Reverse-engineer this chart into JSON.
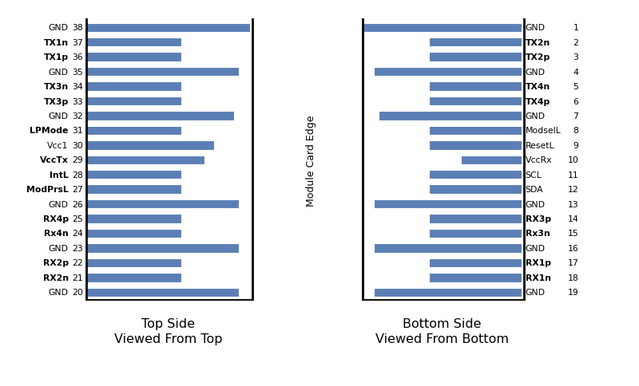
{
  "bar_color": "#5b7fb5",
  "top_labels": [
    "GND",
    "TX1n",
    "TX1p",
    "GND",
    "TX3n",
    "TX3p",
    "GND",
    "LPMode",
    "Vcc1",
    "VccTx",
    "IntL",
    "ModPrsL",
    "GND",
    "RX4p",
    "Rx4n",
    "GND",
    "RX2p",
    "RX2n",
    "GND"
  ],
  "top_numbers": [
    38,
    37,
    36,
    35,
    34,
    33,
    32,
    31,
    30,
    29,
    28,
    27,
    26,
    25,
    24,
    23,
    22,
    21,
    20
  ],
  "top_bar_lengths": [
    10,
    5.8,
    5.8,
    9.3,
    5.8,
    5.8,
    9.0,
    5.8,
    7.8,
    7.2,
    5.8,
    5.8,
    9.3,
    5.8,
    5.8,
    9.3,
    5.8,
    5.8,
    9.3
  ],
  "top_bold": [
    false,
    true,
    true,
    false,
    true,
    true,
    false,
    true,
    false,
    true,
    true,
    true,
    false,
    true,
    true,
    false,
    true,
    true,
    false
  ],
  "bottom_labels": [
    "GND",
    "TX2n",
    "TX2p",
    "GND",
    "TX4n",
    "TX4p",
    "GND",
    "ModselL",
    "ResetL",
    "VccRx",
    "SCL",
    "SDA",
    "GND",
    "RX3p",
    "Rx3n",
    "GND",
    "RX1p",
    "RX1n",
    "GND"
  ],
  "bottom_numbers": [
    1,
    2,
    3,
    4,
    5,
    6,
    7,
    8,
    9,
    10,
    11,
    12,
    13,
    14,
    15,
    16,
    17,
    18,
    19
  ],
  "bottom_bar_lengths": [
    10,
    5.8,
    5.8,
    9.3,
    5.8,
    5.8,
    9.0,
    5.8,
    5.8,
    3.8,
    5.8,
    5.8,
    9.3,
    5.8,
    5.8,
    9.3,
    5.8,
    5.8,
    9.3
  ],
  "bottom_bold": [
    false,
    true,
    true,
    false,
    true,
    true,
    false,
    false,
    false,
    false,
    false,
    false,
    false,
    true,
    true,
    false,
    true,
    true,
    false
  ],
  "top_subtitle": "Top Side\nViewed From Top",
  "bottom_subtitle": "Bottom Side\nViewed From Bottom",
  "side_label": "Module Card Edge",
  "background_color": "#ffffff",
  "label_fontsize": 7.8,
  "subtitle_fontsize": 11.5,
  "side_label_fontsize": 9.0
}
